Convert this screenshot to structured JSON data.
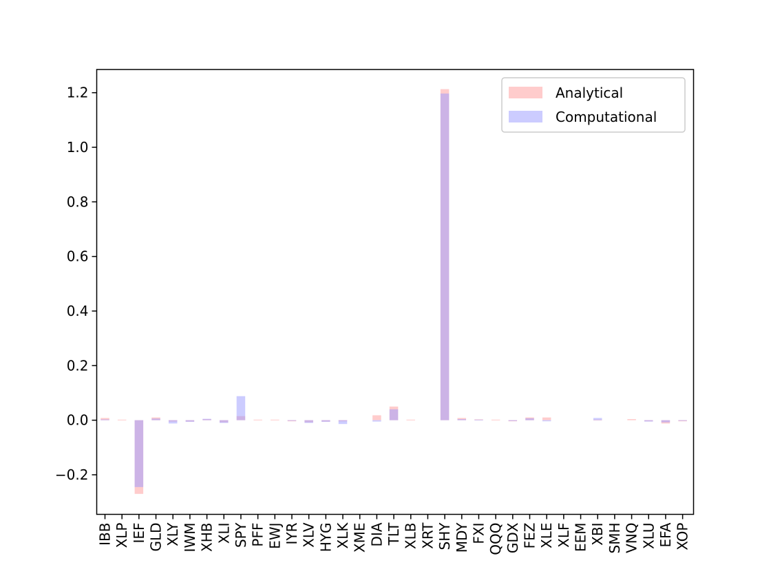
{
  "chart_data": {
    "type": "bar",
    "title": "",
    "xlabel": "",
    "ylabel": "",
    "ylim": [
      -0.345,
      1.285
    ],
    "yticks": [
      -0.2,
      0.0,
      0.2,
      0.4,
      0.6,
      0.8,
      1.0,
      1.2
    ],
    "ytick_labels": [
      "−0.2",
      "0.0",
      "0.2",
      "0.4",
      "0.6",
      "0.8",
      "1.0",
      "1.2"
    ],
    "grid": false,
    "legend_placement": "top-right",
    "categories": [
      "IBB",
      "XLP",
      "IEF",
      "GLD",
      "XLY",
      "IWM",
      "XHB",
      "XLI",
      "SPY",
      "PFF",
      "EWJ",
      "IYR",
      "XLV",
      "HYG",
      "XLK",
      "XME",
      "DIA",
      "TLT",
      "XLB",
      "XRT",
      "SHY",
      "MDY",
      "FXI",
      "QQQ",
      "GDX",
      "FEZ",
      "XLE",
      "XLF",
      "EEM",
      "XBI",
      "SMH",
      "VNQ",
      "XLU",
      "EFA",
      "XOP"
    ],
    "series": [
      {
        "name": "Analytical",
        "color": "#ff9999",
        "opacity": 0.5,
        "values": [
          0.008,
          0.002,
          -0.27,
          0.01,
          -0.005,
          -0.005,
          0.004,
          -0.008,
          0.015,
          0.002,
          0.002,
          -0.004,
          -0.008,
          -0.005,
          -0.004,
          0.0,
          0.018,
          0.05,
          0.002,
          0.0,
          1.213,
          0.008,
          0.003,
          0.002,
          -0.004,
          0.01,
          0.01,
          0.0,
          0.0,
          0.002,
          0.0,
          0.004,
          -0.004,
          -0.012,
          -0.004
        ]
      },
      {
        "name": "Computational",
        "color": "#9999ff",
        "opacity": 0.5,
        "values": [
          0.003,
          0.0,
          -0.245,
          0.006,
          -0.012,
          -0.006,
          0.005,
          -0.01,
          0.088,
          0.0,
          0.0,
          -0.002,
          -0.01,
          -0.006,
          -0.014,
          0.0,
          -0.005,
          0.04,
          0.0,
          0.0,
          1.197,
          0.004,
          0.002,
          0.0,
          -0.003,
          0.007,
          -0.004,
          0.0,
          0.0,
          0.008,
          0.0,
          0.0,
          -0.005,
          -0.008,
          -0.002
        ]
      }
    ]
  }
}
